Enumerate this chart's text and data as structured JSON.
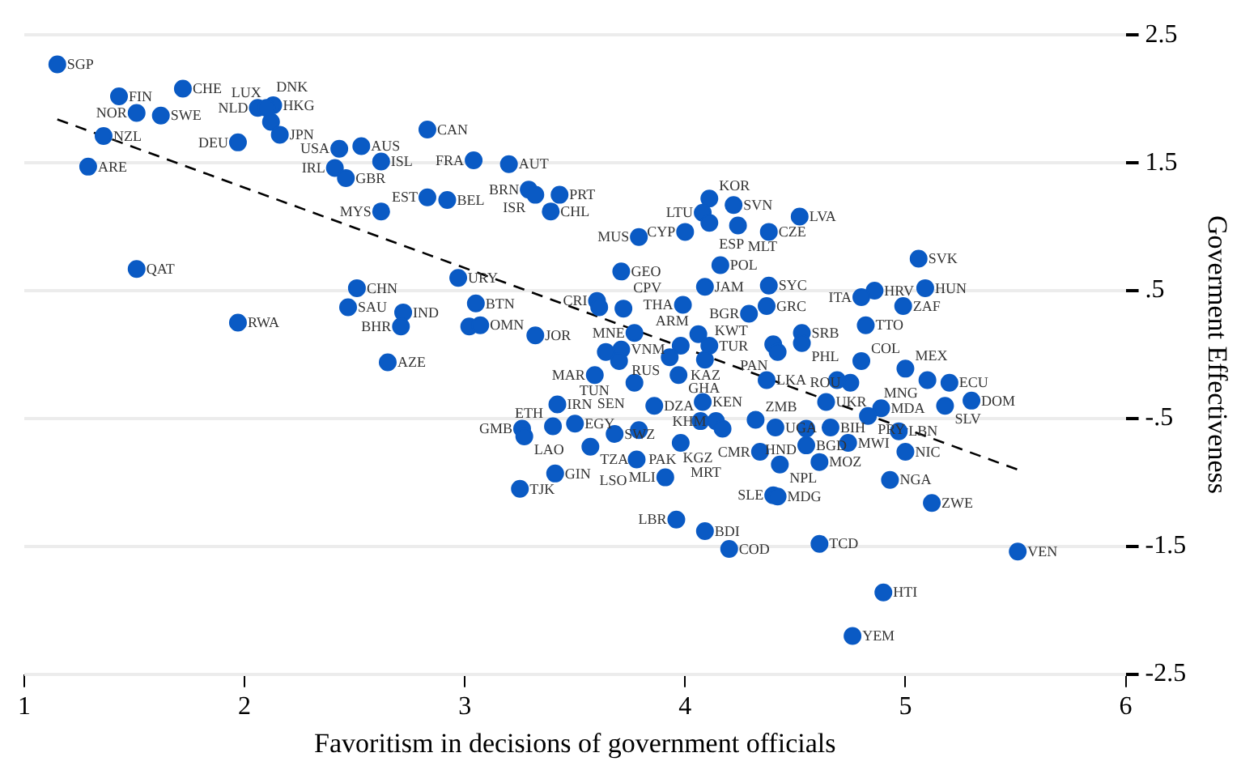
{
  "chart_data": {
    "type": "scatter",
    "xlabel": "Favoritism in decisions of government officials",
    "ylabel": "Goverment Effectiveness",
    "xlim": [
      1,
      6
    ],
    "ylim": [
      -2.5,
      2.5
    ],
    "xticks": [
      1,
      2,
      3,
      4,
      5,
      6
    ],
    "yticks": [
      2.5,
      1.5,
      {
        "value": 0.5,
        "label": ".5"
      },
      {
        "value": -0.5,
        "label": "-.5"
      },
      -1.5,
      -2.5
    ],
    "grid": "y",
    "legend": false,
    "marker": "circle",
    "series": [
      {
        "color": "#0a5ac4",
        "x": [
          1.15,
          1.43,
          1.51,
          1.62,
          1.72,
          2.06,
          2.13,
          2.1,
          2.12,
          2.16,
          1.36,
          1.29,
          1.97,
          2.43,
          2.53,
          2.41,
          2.46,
          2.62,
          2.83,
          3.04,
          3.2,
          2.83,
          2.92,
          3.29,
          3.32,
          3.43,
          3.39,
          2.62,
          1.51,
          2.51,
          2.97,
          2.47,
          2.72,
          2.71,
          1.97,
          3.05,
          3.02,
          3.07,
          3.32,
          2.65,
          3.42,
          3.26,
          3.27,
          3.4,
          3.5,
          3.57,
          3.68,
          3.41,
          3.25,
          4.11,
          4.22,
          4.08,
          4.11,
          4.24,
          4.38,
          4.52,
          4.0,
          3.79,
          4.16,
          3.71,
          4.09,
          4.38,
          4.37,
          4.29,
          3.99,
          3.6,
          3.61,
          3.72,
          3.77,
          3.71,
          3.7,
          3.64,
          3.59,
          3.77,
          4.06,
          4.11,
          3.98,
          3.93,
          4.09,
          3.97,
          4.53,
          4.53,
          4.4,
          4.42,
          4.37,
          3.86,
          4.08,
          4.07,
          4.14,
          4.17,
          4.32,
          4.41,
          3.79,
          3.98,
          4.34,
          4.43,
          3.78,
          3.91,
          4.4,
          4.42,
          3.96,
          4.09,
          4.2,
          4.61,
          4.55,
          5.06,
          5.09,
          4.86,
          4.8,
          4.99,
          4.82,
          4.8,
          5.0,
          5.1,
          5.2,
          4.75,
          4.69,
          5.3,
          5.18,
          4.89,
          4.64,
          4.83,
          4.66,
          4.55,
          4.97,
          4.74,
          5.0,
          4.61,
          4.93,
          5.12,
          5.51,
          4.9,
          4.76
        ],
        "values": [
          2.27,
          2.02,
          1.89,
          1.87,
          2.08,
          1.93,
          1.95,
          1.93,
          1.82,
          1.72,
          1.71,
          1.47,
          1.66,
          1.61,
          1.63,
          1.46,
          1.38,
          1.51,
          1.76,
          1.52,
          1.49,
          1.23,
          1.21,
          1.29,
          1.25,
          1.25,
          1.12,
          1.12,
          0.67,
          0.52,
          0.6,
          0.37,
          0.33,
          0.22,
          0.25,
          0.4,
          0.22,
          0.23,
          0.15,
          -0.06,
          -0.39,
          -0.58,
          -0.64,
          -0.56,
          -0.54,
          -0.72,
          -0.62,
          -0.93,
          -1.05,
          1.22,
          1.17,
          1.11,
          1.03,
          1.01,
          0.96,
          1.08,
          0.96,
          0.92,
          0.7,
          0.65,
          0.53,
          0.54,
          0.38,
          0.32,
          0.39,
          0.42,
          0.37,
          0.36,
          0.17,
          0.04,
          -0.05,
          0.02,
          -0.16,
          -0.22,
          0.16,
          0.07,
          0.07,
          -0.02,
          -0.04,
          -0.16,
          0.17,
          0.09,
          0.08,
          0.02,
          -0.2,
          -0.4,
          -0.37,
          -0.52,
          -0.52,
          -0.58,
          -0.51,
          -0.57,
          -0.59,
          -0.69,
          -0.76,
          -0.86,
          -0.82,
          -0.96,
          -1.1,
          -1.11,
          -1.29,
          -1.38,
          -1.52,
          -1.48,
          -0.71,
          0.75,
          0.52,
          0.5,
          0.45,
          0.38,
          0.23,
          -0.05,
          -0.11,
          -0.2,
          -0.22,
          -0.22,
          -0.2,
          -0.36,
          -0.4,
          -0.42,
          -0.37,
          -0.48,
          -0.57,
          -0.58,
          -0.6,
          -0.69,
          -0.76,
          -0.84,
          -0.98,
          -1.16,
          -1.54,
          -1.86,
          -2.2
        ]
      },
      {
        "type": "line",
        "color": "#000000",
        "line_style": "dashed",
        "marker": "none",
        "x": [
          1.15,
          5.51
        ],
        "values": [
          1.84,
          -0.9
        ]
      }
    ],
    "annotations": [
      {
        "text": "SGP",
        "x": 1.15,
        "y": 2.27
      },
      {
        "text": "FIN",
        "x": 1.43,
        "y": 2.02
      },
      {
        "text": "NOR",
        "x": 1.51,
        "y": 1.89
      },
      {
        "text": "SWE",
        "x": 1.62,
        "y": 1.87
      },
      {
        "text": "CHE",
        "x": 1.72,
        "y": 2.08
      },
      {
        "text": "NLD",
        "x": 2.06,
        "y": 1.93
      },
      {
        "text": "HKG",
        "x": 2.13,
        "y": 1.95
      },
      {
        "text": "DNK",
        "x": 2.1,
        "y": 1.93
      },
      {
        "text": "LUX",
        "x": 2.12,
        "y": 1.82
      },
      {
        "text": "JPN",
        "x": 2.16,
        "y": 1.72
      },
      {
        "text": "NZL",
        "x": 1.36,
        "y": 1.71
      },
      {
        "text": "ARE",
        "x": 1.29,
        "y": 1.47
      },
      {
        "text": "DEU",
        "x": 1.97,
        "y": 1.66
      },
      {
        "text": "USA",
        "x": 2.43,
        "y": 1.61
      },
      {
        "text": "AUS",
        "x": 2.53,
        "y": 1.63
      },
      {
        "text": "IRL",
        "x": 2.41,
        "y": 1.46
      },
      {
        "text": "GBR",
        "x": 2.46,
        "y": 1.38
      },
      {
        "text": "ISL",
        "x": 2.62,
        "y": 1.51
      },
      {
        "text": "CAN",
        "x": 2.83,
        "y": 1.76
      },
      {
        "text": "FRA",
        "x": 3.04,
        "y": 1.52
      },
      {
        "text": "AUT",
        "x": 3.2,
        "y": 1.49
      },
      {
        "text": "EST",
        "x": 2.83,
        "y": 1.23
      },
      {
        "text": "BEL",
        "x": 2.92,
        "y": 1.21
      },
      {
        "text": "BRN",
        "x": 3.29,
        "y": 1.29
      },
      {
        "text": "ISR",
        "x": 3.32,
        "y": 1.25
      },
      {
        "text": "PRT",
        "x": 3.43,
        "y": 1.25
      },
      {
        "text": "CHL",
        "x": 3.39,
        "y": 1.12
      },
      {
        "text": "MYS",
        "x": 2.62,
        "y": 1.12
      },
      {
        "text": "QAT",
        "x": 1.51,
        "y": 0.67
      },
      {
        "text": "CHN",
        "x": 2.51,
        "y": 0.52
      },
      {
        "text": "URY",
        "x": 2.97,
        "y": 0.6
      },
      {
        "text": "SAU",
        "x": 2.47,
        "y": 0.37
      },
      {
        "text": "IND",
        "x": 2.72,
        "y": 0.33
      },
      {
        "text": "BHR",
        "x": 2.71,
        "y": 0.22
      },
      {
        "text": "RWA",
        "x": 1.97,
        "y": 0.25
      },
      {
        "text": "BTN",
        "x": 3.05,
        "y": 0.4
      },
      {
        "text": "OMN",
        "x": 3.07,
        "y": 0.23
      },
      {
        "text": "JOR",
        "x": 3.32,
        "y": 0.15
      },
      {
        "text": "AZE",
        "x": 2.65,
        "y": -0.06
      },
      {
        "text": "IRN",
        "x": 3.42,
        "y": -0.39
      },
      {
        "text": "GMB",
        "x": 3.26,
        "y": -0.58
      },
      {
        "text": "LAO",
        "x": 3.27,
        "y": -0.64
      },
      {
        "text": "ETH",
        "x": 3.4,
        "y": -0.56
      },
      {
        "text": "EGY",
        "x": 3.5,
        "y": -0.54
      },
      {
        "text": "TZA",
        "x": 3.57,
        "y": -0.72
      },
      {
        "text": "SWZ",
        "x": 3.68,
        "y": -0.62
      },
      {
        "text": "GIN",
        "x": 3.41,
        "y": -0.93
      },
      {
        "text": "TJK",
        "x": 3.25,
        "y": -1.05
      },
      {
        "text": "KOR",
        "x": 4.11,
        "y": 1.22
      },
      {
        "text": "SVN",
        "x": 4.22,
        "y": 1.17
      },
      {
        "text": "LTU",
        "x": 4.08,
        "y": 1.11
      },
      {
        "text": "ESP",
        "x": 4.11,
        "y": 1.03
      },
      {
        "text": "MLT",
        "x": 4.24,
        "y": 1.01
      },
      {
        "text": "CZE",
        "x": 4.38,
        "y": 0.96
      },
      {
        "text": "LVA",
        "x": 4.52,
        "y": 1.08
      },
      {
        "text": "CYP",
        "x": 4.0,
        "y": 0.96
      },
      {
        "text": "MUS",
        "x": 3.79,
        "y": 0.92
      },
      {
        "text": "POL",
        "x": 4.16,
        "y": 0.7
      },
      {
        "text": "GEO",
        "x": 3.71,
        "y": 0.65
      },
      {
        "text": "JAM",
        "x": 4.09,
        "y": 0.53
      },
      {
        "text": "SYC",
        "x": 4.38,
        "y": 0.54
      },
      {
        "text": "GRC",
        "x": 4.37,
        "y": 0.38
      },
      {
        "text": "BGR",
        "x": 4.29,
        "y": 0.32
      },
      {
        "text": "THA",
        "x": 3.99,
        "y": 0.39
      },
      {
        "text": "CRI",
        "x": 3.6,
        "y": 0.42
      },
      {
        "text": "CPV",
        "x": 3.72,
        "y": 0.36
      },
      {
        "text": "MNE",
        "x": 3.77,
        "y": 0.17
      },
      {
        "text": "VNM",
        "x": 3.71,
        "y": 0.04
      },
      {
        "text": "TUN",
        "x": 3.7,
        "y": -0.05
      },
      {
        "text": "MAR",
        "x": 3.59,
        "y": -0.16
      },
      {
        "text": "SEN",
        "x": 3.77,
        "y": -0.22
      },
      {
        "text": "ARM",
        "x": 4.06,
        "y": 0.16
      },
      {
        "text": "TUR",
        "x": 4.11,
        "y": 0.07
      },
      {
        "text": "KAZ",
        "x": 3.98,
        "y": 0.07
      },
      {
        "text": "RUS",
        "x": 3.93,
        "y": -0.02
      },
      {
        "text": "KWT",
        "x": 4.09,
        "y": -0.04
      },
      {
        "text": "GHA",
        "x": 3.97,
        "y": -0.16
      },
      {
        "text": "SRB",
        "x": 4.53,
        "y": 0.17
      },
      {
        "text": "PHL",
        "x": 4.53,
        "y": 0.09
      },
      {
        "text": "PAN",
        "x": 4.42,
        "y": 0.02
      },
      {
        "text": "LKA",
        "x": 4.37,
        "y": -0.2
      },
      {
        "text": "DZA",
        "x": 3.86,
        "y": -0.4
      },
      {
        "text": "KEN",
        "x": 4.08,
        "y": -0.37
      },
      {
        "text": "KHM",
        "x": 4.14,
        "y": -0.52
      },
      {
        "text": "KGZ",
        "x": 4.17,
        "y": -0.58
      },
      {
        "text": "ZMB",
        "x": 4.32,
        "y": -0.51
      },
      {
        "text": "UGA",
        "x": 4.41,
        "y": -0.57
      },
      {
        "text": "PAK",
        "x": 3.79,
        "y": -0.59
      },
      {
        "text": "MRT",
        "x": 3.98,
        "y": -0.69
      },
      {
        "text": "CMR",
        "x": 4.34,
        "y": -0.76
      },
      {
        "text": "NPL",
        "x": 4.43,
        "y": -0.86
      },
      {
        "text": "LSO",
        "x": 3.78,
        "y": -0.82
      },
      {
        "text": "MLI",
        "x": 3.91,
        "y": -0.96
      },
      {
        "text": "SLE",
        "x": 4.4,
        "y": -1.1
      },
      {
        "text": "MDG",
        "x": 4.42,
        "y": -1.11
      },
      {
        "text": "LBR",
        "x": 3.96,
        "y": -1.29
      },
      {
        "text": "BDI",
        "x": 4.09,
        "y": -1.38
      },
      {
        "text": "COD",
        "x": 4.2,
        "y": -1.52
      },
      {
        "text": "TCD",
        "x": 4.61,
        "y": -1.48
      },
      {
        "text": "BGD",
        "x": 4.55,
        "y": -0.71
      },
      {
        "text": "SVK",
        "x": 5.06,
        "y": 0.75
      },
      {
        "text": "HUN",
        "x": 5.09,
        "y": 0.52
      },
      {
        "text": "HRV",
        "x": 4.86,
        "y": 0.5
      },
      {
        "text": "ITA",
        "x": 4.8,
        "y": 0.45
      },
      {
        "text": "ZAF",
        "x": 4.99,
        "y": 0.38
      },
      {
        "text": "TTO",
        "x": 4.82,
        "y": 0.23
      },
      {
        "text": "COL",
        "x": 4.8,
        "y": -0.05
      },
      {
        "text": "MEX",
        "x": 5.0,
        "y": -0.11
      },
      {
        "text": "MNG",
        "x": 5.1,
        "y": -0.2
      },
      {
        "text": "ECU",
        "x": 5.2,
        "y": -0.22
      },
      {
        "text": "ROU",
        "x": 4.75,
        "y": -0.22
      },
      {
        "text": "DOM",
        "x": 5.3,
        "y": -0.36
      },
      {
        "text": "SLV",
        "x": 5.18,
        "y": -0.4
      },
      {
        "text": "MDA",
        "x": 4.89,
        "y": -0.42
      },
      {
        "text": "UKR",
        "x": 4.64,
        "y": -0.37
      },
      {
        "text": "PRY",
        "x": 4.83,
        "y": -0.48
      },
      {
        "text": "BIH",
        "x": 4.66,
        "y": -0.57
      },
      {
        "text": "HND",
        "x": 4.55,
        "y": -0.58
      },
      {
        "text": "LBN",
        "x": 4.97,
        "y": -0.6
      },
      {
        "text": "MWI",
        "x": 4.74,
        "y": -0.69
      },
      {
        "text": "NIC",
        "x": 5.0,
        "y": -0.76
      },
      {
        "text": "MOZ",
        "x": 4.61,
        "y": -0.84
      },
      {
        "text": "NGA",
        "x": 4.93,
        "y": -0.98
      },
      {
        "text": "ZWE",
        "x": 5.12,
        "y": -1.16
      },
      {
        "text": "VEN",
        "x": 5.51,
        "y": -1.54
      },
      {
        "text": "HTI",
        "x": 4.9,
        "y": -1.86
      },
      {
        "text": "YEM",
        "x": 4.76,
        "y": -2.2
      }
    ]
  }
}
